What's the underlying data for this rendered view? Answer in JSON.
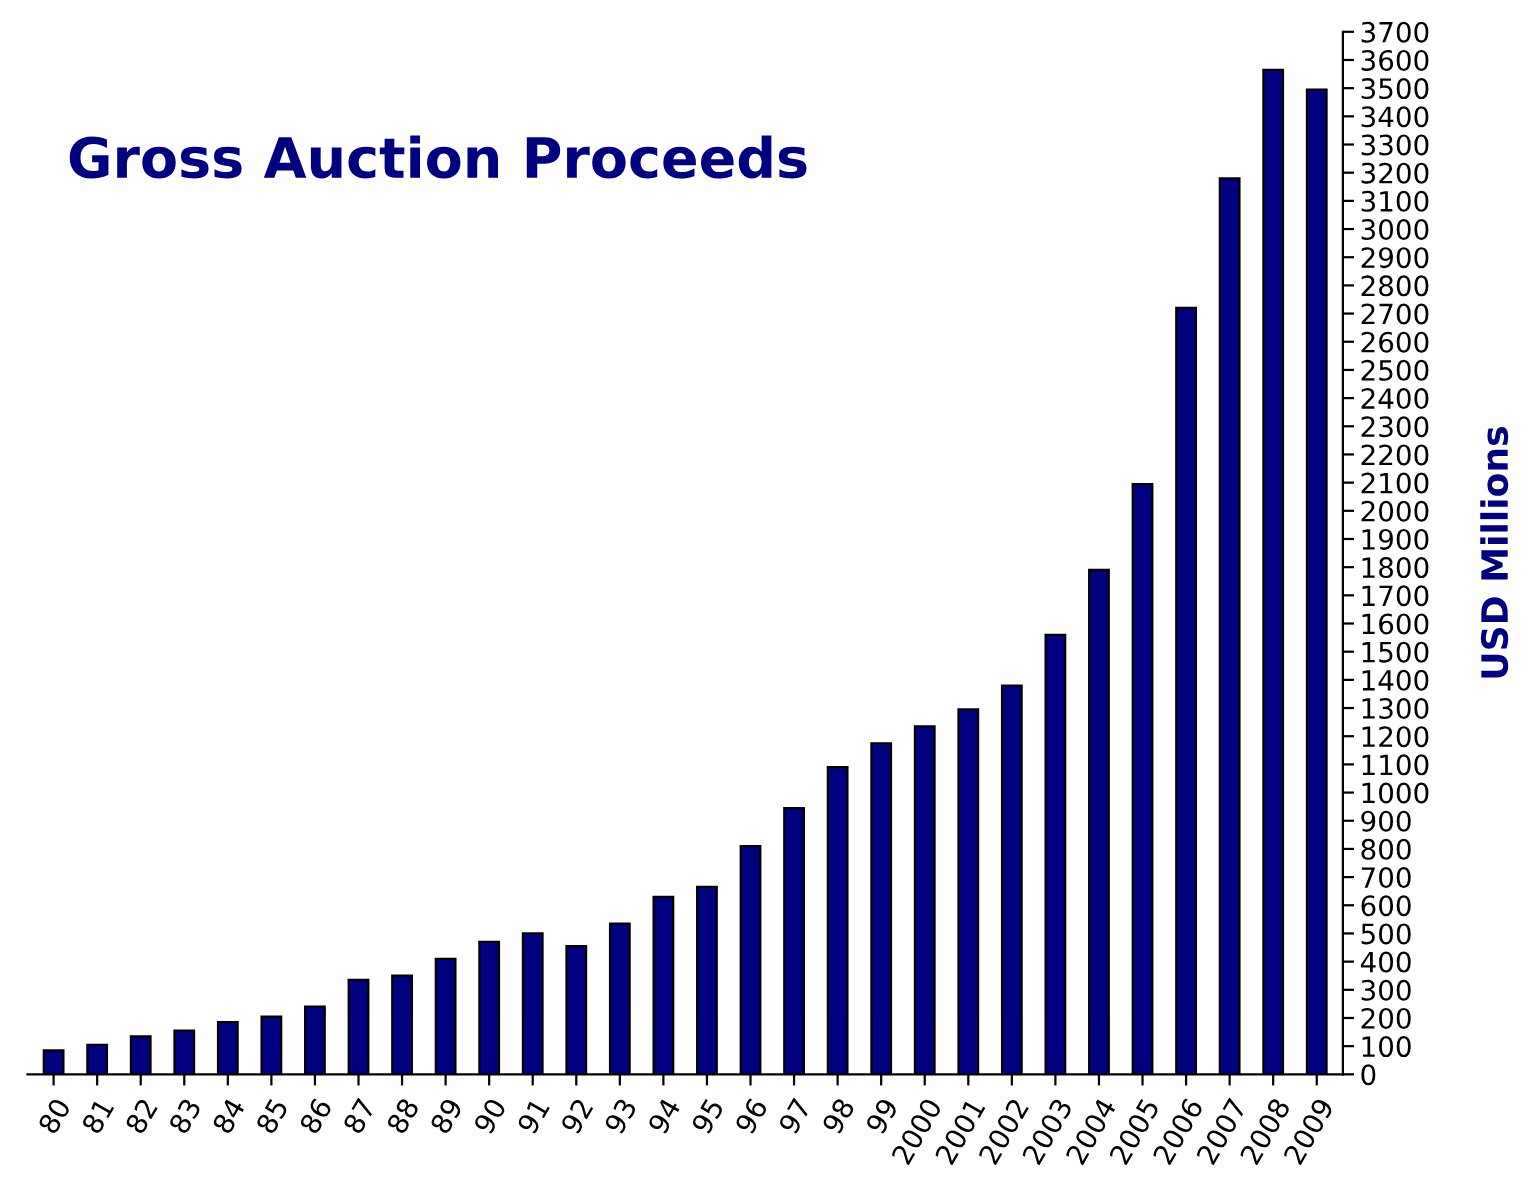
{
  "chart_data": {
    "type": "bar",
    "title": "Gross Auction Proceeds",
    "ylabel": "USD Millions",
    "categories": [
      "80",
      "81",
      "82",
      "83",
      "84",
      "85",
      "86",
      "87",
      "88",
      "89",
      "90",
      "91",
      "92",
      "93",
      "94",
      "95",
      "96",
      "97",
      "98",
      "99",
      "2000",
      "2001",
      "2002",
      "2003",
      "2004",
      "2005",
      "2006",
      "2007",
      "2008",
      "2009"
    ],
    "values": [
      85,
      105,
      135,
      155,
      185,
      205,
      240,
      335,
      350,
      410,
      470,
      500,
      455,
      535,
      630,
      665,
      810,
      945,
      1090,
      1175,
      1235,
      1295,
      1380,
      1560,
      1790,
      2095,
      2720,
      3180,
      3565,
      3495
    ],
    "color": "#000080",
    "ylim": [
      0,
      3700
    ],
    "yticks": [
      0,
      100,
      200,
      300,
      400,
      500,
      600,
      700,
      800,
      900,
      1000,
      1100,
      1200,
      1300,
      1400,
      1500,
      1600,
      1700,
      1800,
      1900,
      2000,
      2100,
      2200,
      2300,
      2400,
      2500,
      2600,
      2700,
      2800,
      2900,
      3000,
      3100,
      3200,
      3300,
      3400,
      3500,
      3600,
      3700
    ],
    "grid": false,
    "legend": false
  }
}
